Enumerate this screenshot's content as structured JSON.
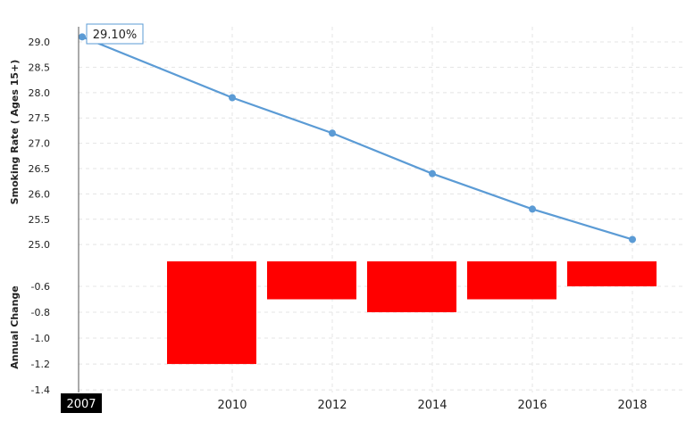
{
  "chart_data": [
    {
      "type": "line",
      "ylabel": "Smoking Rate ( Ages 15+)",
      "x": [
        2007,
        2010,
        2012,
        2014,
        2016,
        2018
      ],
      "values": [
        29.1,
        27.9,
        27.2,
        26.4,
        25.7,
        25.1
      ],
      "yticks": [
        29.0,
        28.5,
        28.0,
        27.5,
        27.0,
        26.5,
        26.0,
        25.5,
        25.0
      ],
      "ylim": [
        24.95,
        29.3
      ],
      "grid": true,
      "color": "#5b9bd5",
      "tooltip": {
        "x": 2007,
        "label": "29.10%"
      }
    },
    {
      "type": "bar",
      "ylabel": "Annual Change",
      "categories": [
        2010,
        2012,
        2014,
        2016,
        2018
      ],
      "values": [
        -1.2,
        -0.7,
        -0.8,
        -0.7,
        -0.6
      ],
      "yticks": [
        -0.6,
        -0.8,
        -1.0,
        -1.2,
        -1.4
      ],
      "ylim": [
        -1.42,
        -0.4
      ],
      "grid": true,
      "color": "#ff0000"
    }
  ],
  "x_axis": {
    "tick_labels": [
      "2010",
      "2012",
      "2014",
      "2016",
      "2018"
    ],
    "highlight_label": "2007"
  }
}
